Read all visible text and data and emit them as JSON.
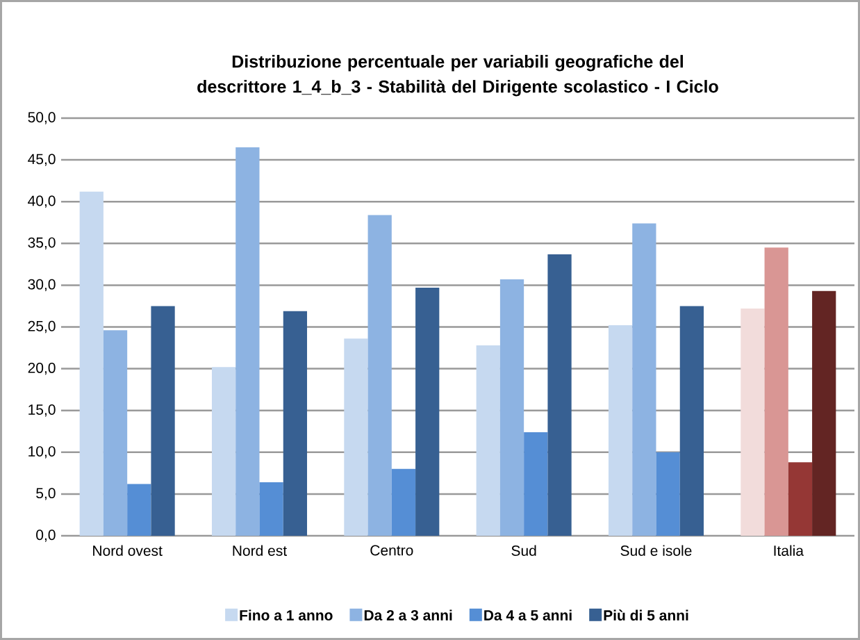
{
  "chart_data": {
    "type": "bar",
    "title": "Distribuzione percentuale per variabili geografiche del descrittore 1_4_b_3 - Stabilità del Dirigente scolastico - I Ciclo",
    "categories": [
      "Nord ovest",
      "Nord est",
      "Centro",
      "Sud",
      "Sud e isole",
      "Italia"
    ],
    "series": [
      {
        "name": "Fino a 1 anno",
        "color": "#c6d9f0",
        "colors": [
          "#c6d9f0",
          "#c6d9f0",
          "#c6d9f0",
          "#c6d9f0",
          "#c6d9f0",
          "#f2dcdb"
        ],
        "values": [
          41.2,
          20.2,
          23.6,
          22.8,
          25.2,
          27.2
        ]
      },
      {
        "name": "Da 2 a 3 anni",
        "color": "#8db3e2",
        "colors": [
          "#8db3e2",
          "#8db3e2",
          "#8db3e2",
          "#8db3e2",
          "#8db3e2",
          "#d99694"
        ],
        "values": [
          24.6,
          46.5,
          38.4,
          30.7,
          37.4,
          34.5
        ]
      },
      {
        "name": "Da 4 a 5 anni",
        "color": "#558ed5",
        "colors": [
          "#558ed5",
          "#558ed5",
          "#558ed5",
          "#558ed5",
          "#558ed5",
          "#953735"
        ],
        "values": [
          6.2,
          6.4,
          8.0,
          12.4,
          10.0,
          8.8
        ]
      },
      {
        "name": "Più di 5 anni",
        "color": "#376092",
        "colors": [
          "#376092",
          "#376092",
          "#376092",
          "#376092",
          "#376092",
          "#632523"
        ],
        "values": [
          27.5,
          26.9,
          29.7,
          33.7,
          27.5,
          29.3
        ]
      }
    ],
    "ylim": [
      0,
      50
    ],
    "yticks": [
      {
        "value": 0,
        "label": "0,0"
      },
      {
        "value": 5,
        "label": "5,0"
      },
      {
        "value": 10,
        "label": "10,0"
      },
      {
        "value": 15,
        "label": "15,0"
      },
      {
        "value": 20,
        "label": "20,0"
      },
      {
        "value": 25,
        "label": "25,0"
      },
      {
        "value": 30,
        "label": "30,0"
      },
      {
        "value": 35,
        "label": "35,0"
      },
      {
        "value": 40,
        "label": "40,0"
      },
      {
        "value": 45,
        "label": "45,0"
      },
      {
        "value": 50,
        "label": "50,0"
      }
    ],
    "grid": "y",
    "legend": "bottom"
  }
}
